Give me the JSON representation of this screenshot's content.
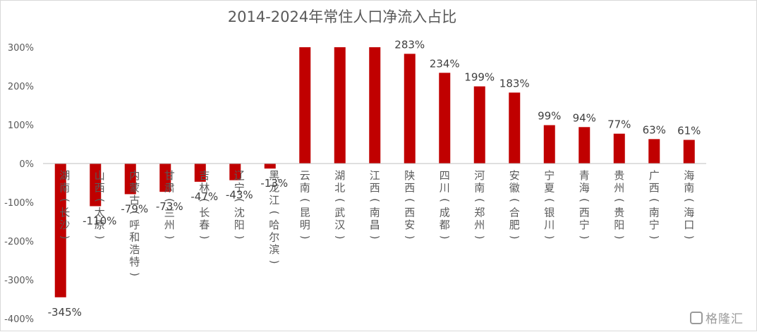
{
  "chart_data": {
    "type": "bar",
    "title": "2014-2024年常住人口净流入占比",
    "categories": [
      "湖南(长沙)",
      "山西(太原)",
      "内蒙古(呼和浩特)",
      "甘肃(兰州)",
      "吉林(长春)",
      "辽宁(沈阳)",
      "黑龙江(哈尔滨)",
      "云南(昆明)",
      "湖北(武汉)",
      "江西(南昌)",
      "陕西(西安)",
      "四川(成都)",
      "河南(郑州)",
      "安徽(合肥)",
      "宁夏(银川)",
      "青海(西宁)",
      "贵州(贵阳)",
      "广西(南宁)",
      "海南(海口)"
    ],
    "values": [
      -345,
      -110,
      -79,
      -73,
      -47,
      -43,
      -13,
      300,
      300,
      300,
      283,
      234,
      199,
      183,
      99,
      94,
      77,
      63,
      61
    ],
    "data_labels": [
      "-345%",
      "-110%",
      "-79%",
      "-73%",
      "-47%",
      "-43%",
      "-13%",
      "",
      "",
      "",
      "283%",
      "234%",
      "199%",
      "183%",
      "99%",
      "94%",
      "77%",
      "63%",
      "61%"
    ],
    "ylim": [
      -400,
      300
    ],
    "yticks": [
      300,
      200,
      100,
      0,
      -100,
      -200,
      -300,
      -400
    ],
    "ytick_labels": [
      "300%",
      "200%",
      "100%",
      "0%",
      "-100%",
      "-200%",
      "-300%",
      "-400%"
    ],
    "bar_color": "#c00000",
    "grid": false,
    "legend": "none"
  },
  "watermark": "格隆汇"
}
